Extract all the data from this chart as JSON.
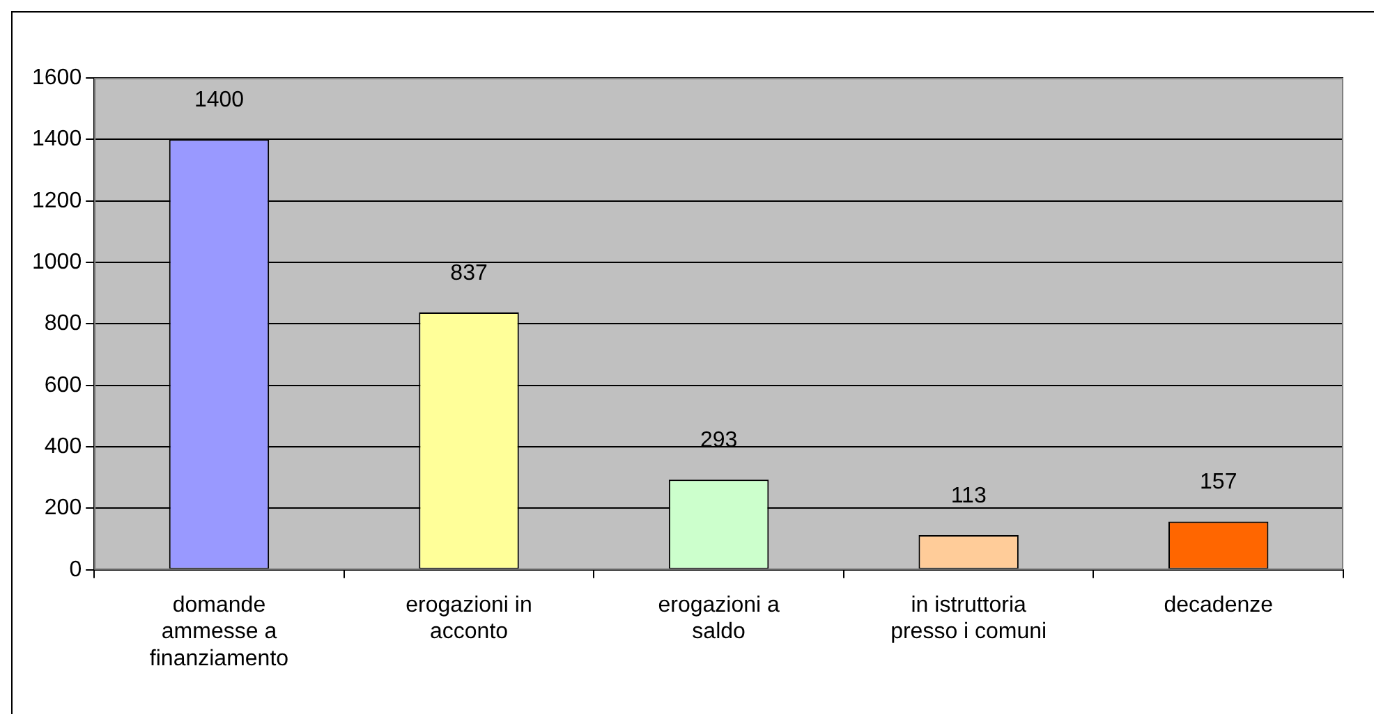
{
  "chart_data": {
    "type": "bar",
    "categories": [
      "domande ammesse a finanziamento",
      "erogazioni in acconto",
      "erogazioni a saldo",
      "in istruttoria presso i comuni",
      "decadenze"
    ],
    "values": [
      1400,
      837,
      293,
      113,
      157
    ],
    "colors": [
      "#9999ff",
      "#ffff99",
      "#ccffcc",
      "#ffcc99",
      "#ff6600"
    ],
    "ylim": [
      0,
      1600
    ],
    "yticks": [
      0,
      200,
      400,
      600,
      800,
      1000,
      1200,
      1400,
      1600
    ],
    "grid": "y",
    "data_labels": true,
    "legend": false
  }
}
